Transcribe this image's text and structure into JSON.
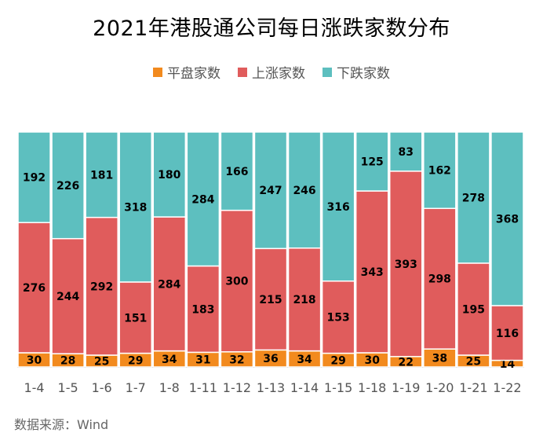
{
  "chart_data": {
    "type": "bar",
    "stacked": true,
    "normalized": true,
    "title": "2021年港股通公司每日涨跌家数分布",
    "categories": [
      "1-4",
      "1-5",
      "1-6",
      "1-7",
      "1-8",
      "1-11",
      "1-12",
      "1-13",
      "1-14",
      "1-15",
      "1-18",
      "1-19",
      "1-20",
      "1-21",
      "1-22"
    ],
    "series": [
      {
        "name": "平盘家数",
        "color": "#f28a1e",
        "values": [
          30,
          28,
          25,
          29,
          34,
          31,
          32,
          36,
          34,
          29,
          30,
          22,
          38,
          25,
          14
        ]
      },
      {
        "name": "上涨家数",
        "color": "#e05c5c",
        "values": [
          276,
          244,
          292,
          151,
          284,
          183,
          300,
          215,
          218,
          153,
          343,
          393,
          298,
          195,
          116
        ]
      },
      {
        "name": "下跌家数",
        "color": "#5dbfbf",
        "values": [
          192,
          226,
          181,
          318,
          180,
          284,
          166,
          247,
          246,
          316,
          125,
          83,
          162,
          278,
          368
        ]
      }
    ],
    "legend_position": "top",
    "grid": false,
    "source": "数据来源：Wind"
  }
}
